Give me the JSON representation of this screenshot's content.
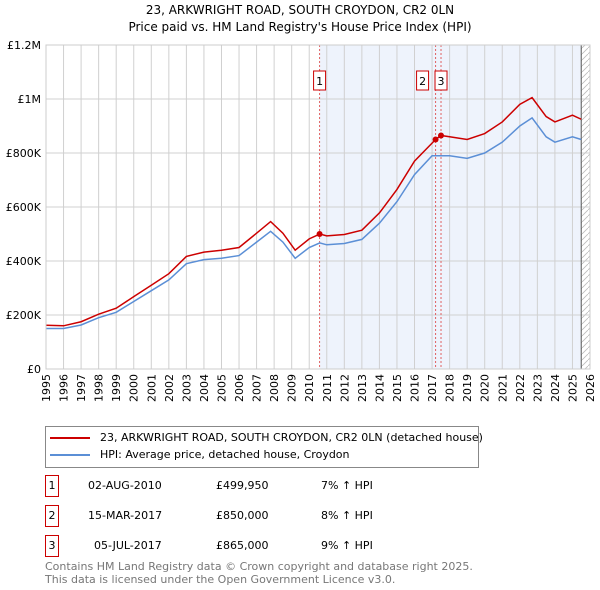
{
  "chart_data": {
    "type": "line",
    "title": "23, ARKWRIGHT ROAD, SOUTH CROYDON, CR2 0LN",
    "subtitle": "Price paid vs. HM Land Registry's House Price Index (HPI)",
    "xlim": [
      1995,
      2026
    ],
    "ylim": [
      0,
      1200000
    ],
    "x_ticks": [
      "1995",
      "1996",
      "1997",
      "1998",
      "1999",
      "2000",
      "2001",
      "2002",
      "2003",
      "2004",
      "2005",
      "2006",
      "2007",
      "2008",
      "2009",
      "2010",
      "2011",
      "2012",
      "2013",
      "2014",
      "2015",
      "2016",
      "2017",
      "2018",
      "2019",
      "2020",
      "2021",
      "2022",
      "2023",
      "2024",
      "2025",
      "2026"
    ],
    "y_ticks": [
      {
        "v": 0,
        "label": "£0"
      },
      {
        "v": 200000,
        "label": "£200K"
      },
      {
        "v": 400000,
        "label": "£400K"
      },
      {
        "v": 600000,
        "label": "£600K"
      },
      {
        "v": 800000,
        "label": "£800K"
      },
      {
        "v": 1000000,
        "label": "£1M"
      },
      {
        "v": 1200000,
        "label": "£1.2M"
      }
    ],
    "grid": true,
    "series": [
      {
        "name": "23, ARKWRIGHT ROAD, SOUTH CROYDON, CR2 0LN (detached house)",
        "color": "#cc0000",
        "x": [
          1995,
          1996,
          1997,
          1998,
          1999,
          2000,
          2001,
          2002,
          2003,
          2004,
          2005,
          2006,
          2007,
          2007.8,
          2008.5,
          2009.2,
          2010,
          2010.6,
          2011,
          2012,
          2013,
          2014,
          2015,
          2016,
          2017.2,
          2017.5,
          2018,
          2019,
          2020,
          2021,
          2022,
          2022.7,
          2023.5,
          2024,
          2025,
          2025.5
        ],
        "y": [
          162000,
          160000,
          175000,
          203000,
          225000,
          268000,
          310000,
          353000,
          417000,
          433000,
          440000,
          450000,
          503000,
          546000,
          503000,
          440000,
          482000,
          499950,
          493000,
          498000,
          514000,
          578000,
          665000,
          770000,
          850000,
          865000,
          860000,
          850000,
          872000,
          915000,
          980000,
          1005000,
          935000,
          915000,
          940000,
          925000
        ]
      },
      {
        "name": "HPI: Average price, detached house, Croydon",
        "color": "#5b8fd6",
        "x": [
          1995,
          1996,
          1997,
          1998,
          1999,
          2000,
          2001,
          2002,
          2003,
          2004,
          2005,
          2006,
          2007,
          2007.8,
          2008.5,
          2009.2,
          2010,
          2010.6,
          2011,
          2012,
          2013,
          2014,
          2015,
          2016,
          2017,
          2018,
          2019,
          2020,
          2021,
          2022,
          2022.7,
          2023.5,
          2024,
          2025,
          2025.5
        ],
        "y": [
          150000,
          150000,
          163000,
          190000,
          210000,
          250000,
          290000,
          330000,
          390000,
          405000,
          410000,
          420000,
          470000,
          510000,
          470000,
          410000,
          450000,
          467000,
          460000,
          465000,
          480000,
          540000,
          620000,
          720000,
          790000,
          790000,
          780000,
          800000,
          840000,
          900000,
          930000,
          860000,
          840000,
          860000,
          850000
        ]
      }
    ],
    "sales": [
      {
        "n": "1",
        "x": 2010.59,
        "y": 499950,
        "date": "02-AUG-2010",
        "price": "£499,950",
        "hpi": "7% ↑ HPI"
      },
      {
        "n": "2",
        "x": 2017.2,
        "y": 850000,
        "date": "15-MAR-2017",
        "price": "£850,000",
        "hpi": "8% ↑ HPI"
      },
      {
        "n": "3",
        "x": 2017.51,
        "y": 865000,
        "date": "05-JUL-2017",
        "price": "£865,000",
        "hpi": "9% ↑ HPI"
      }
    ],
    "shaded_from": 2010.59,
    "data_end": 2025.5
  },
  "legend": {
    "red": "23, ARKWRIGHT ROAD, SOUTH CROYDON, CR2 0LN (detached house)",
    "blue": "HPI: Average price, detached house, Croydon"
  },
  "footer": {
    "line1": "Contains HM Land Registry data © Crown copyright and database right 2025.",
    "line2": "This data is licensed under the Open Government Licence v3.0."
  }
}
